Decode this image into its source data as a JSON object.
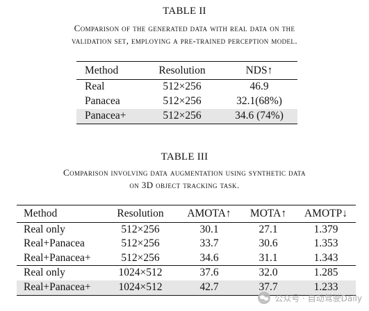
{
  "table2": {
    "number": "TABLE II",
    "caption_line1": "Comparison of the generated data with real data on the",
    "caption_line2": "validation set, employing a pre-trained perception model.",
    "headers": [
      "Method",
      "Resolution",
      "NDS↑"
    ],
    "rows": [
      [
        "Real",
        "512×256",
        "46.9"
      ],
      [
        "Panacea",
        "512×256",
        "32.1(68%)"
      ],
      [
        "Panacea+",
        "512×256",
        "34.6 (74%)"
      ]
    ],
    "highlighted_row": 2
  },
  "table3": {
    "number": "TABLE III",
    "caption_line1": "Comparison involving data augmentation using synthetic data",
    "caption_line2": "on 3D object tracking task.",
    "headers": [
      "Method",
      "Resolution",
      "AMOTA↑",
      "MOTA↑",
      "AMOTP↓"
    ],
    "rows": [
      [
        "Real only",
        "512×256",
        "30.1",
        "27.1",
        "1.379"
      ],
      [
        "Real+Panacea",
        "512×256",
        "33.7",
        "30.6",
        "1.353"
      ],
      [
        "Real+Panacea+",
        "512×256",
        "34.6",
        "31.1",
        "1.343"
      ],
      [
        "Real only",
        "1024×512",
        "37.6",
        "32.0",
        "1.285"
      ],
      [
        "Real+Panacea+",
        "1024×512",
        "42.7",
        "37.7",
        "1.233"
      ]
    ],
    "group_break_before_row": 3,
    "highlighted_row": 4
  },
  "watermark": {
    "text": "公众号 · 自动驾驶Daily",
    "icon": "wechat-logo-icon"
  }
}
